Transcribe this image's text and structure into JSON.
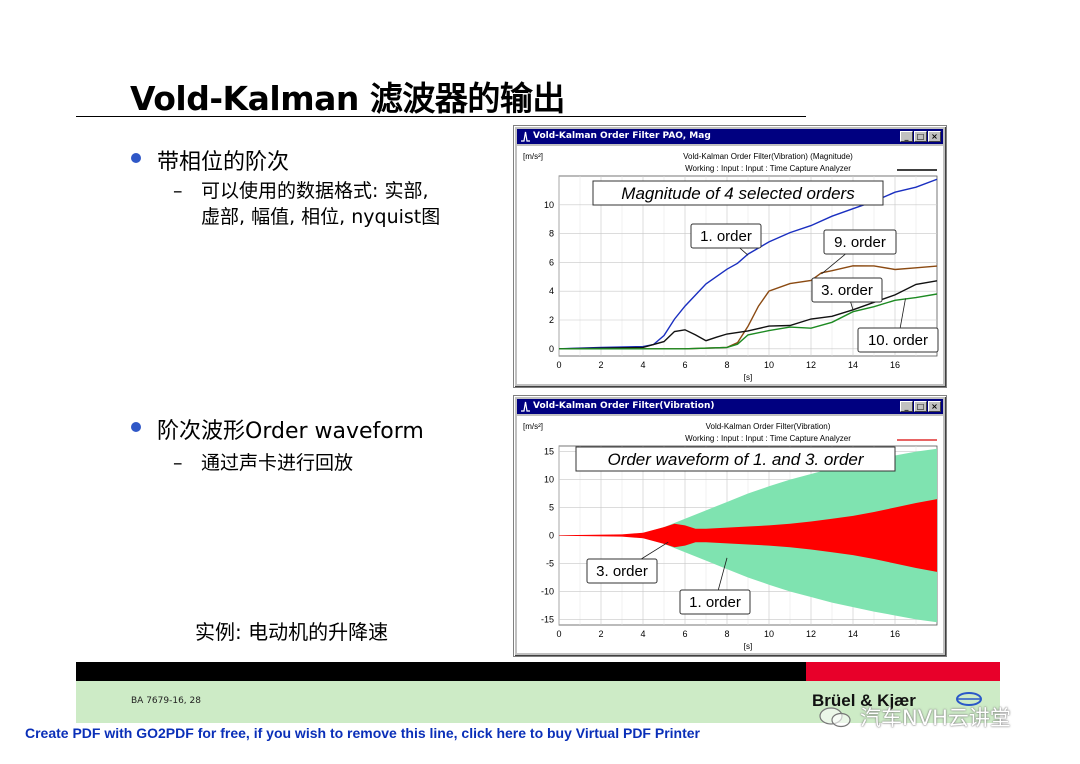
{
  "slide": {
    "title": "Vold-Kalman 滤波器的输出",
    "bullet1": "带相位的阶次",
    "bullet1_sub_line1": "可以使用的数据格式: 实部,",
    "bullet1_sub_line2": "虚部, 幅值, 相位, nyquist图",
    "bullet2": "阶次波形Order waveform",
    "bullet2_sub": "通过声卡进行回放",
    "example": "实例: 电动机的升降速",
    "dash": "–"
  },
  "footer": {
    "code": "BA 7679-16, 28",
    "logo": "Brüel & Kjær",
    "watermark": "汽车NVH云讲堂",
    "pdf_line": "Create PDF with GO2PDF for free, if you wish to remove this line, click here to buy Virtual PDF Printer"
  },
  "window_buttons": {
    "minimize": "_",
    "maximize": "□",
    "close": "×"
  },
  "chart_data": [
    {
      "type": "line",
      "window_title": "Vold-Kalman Order Filter PAO, Mag",
      "header_line1": "Vold-Kalman Order Filter(Vibration) (Magnitude)",
      "header_line2": "Working : Input : Input : Time Capture Analyzer",
      "unit": "[m/s²]",
      "xlabel": "[s]",
      "xlim": [
        0,
        18
      ],
      "ylim": [
        -0.5,
        12
      ],
      "xticks": [
        "0",
        "2",
        "4",
        "6",
        "8",
        "10",
        "12",
        "14",
        "16"
      ],
      "yticks": [
        "0",
        "2",
        "4",
        "6",
        "8",
        "10"
      ],
      "grid": true,
      "annotation_main": "Magnitude of 4 selected orders",
      "series": [
        {
          "name": "1. order",
          "color": "#1a2fc0",
          "x": [
            0,
            2,
            4,
            4.5,
            5,
            5.5,
            6,
            7,
            8,
            8.5,
            9,
            10,
            11,
            12,
            13,
            14,
            15,
            16,
            17,
            18
          ],
          "y": [
            0,
            0.1,
            0.15,
            0.3,
            1,
            2,
            3,
            4.5,
            5.5,
            6,
            6.5,
            7.5,
            8,
            8.6,
            9.2,
            9.7,
            10.3,
            10.8,
            11.3,
            11.7
          ]
        },
        {
          "name": "9. order",
          "color": "#8b4a12",
          "x": [
            0,
            4,
            6,
            8,
            8.5,
            9,
            9.5,
            10,
            11,
            12,
            12.5,
            13,
            14,
            15,
            16,
            17,
            18
          ],
          "y": [
            0,
            0,
            0,
            0.1,
            0.5,
            1.5,
            3,
            4,
            4.5,
            4.8,
            5.2,
            5.5,
            5.7,
            5.8,
            5.5,
            5.6,
            5.8
          ]
        },
        {
          "name": "3. order",
          "color": "#111111",
          "x": [
            0,
            4,
            5,
            5.5,
            6,
            6.5,
            7,
            7.5,
            8,
            9,
            10,
            11,
            12,
            13,
            14,
            15,
            16,
            17,
            18
          ],
          "y": [
            0,
            0.1,
            0.5,
            1.2,
            1.4,
            0.9,
            0.6,
            0.8,
            1,
            1.3,
            1.5,
            1.7,
            2,
            2.3,
            2.7,
            3.2,
            3.8,
            4.4,
            4.8
          ]
        },
        {
          "name": "10. order",
          "color": "#1d8a22",
          "x": [
            0,
            4,
            6,
            8,
            8.5,
            9,
            10,
            11,
            12,
            13,
            14,
            15,
            16,
            17,
            18
          ],
          "y": [
            0,
            0,
            0,
            0.1,
            0.4,
            0.9,
            1.3,
            1.5,
            1.4,
            1.9,
            2.5,
            3,
            3.3,
            3.6,
            3.8
          ]
        }
      ],
      "callouts": [
        {
          "text": "1. order",
          "series": "1. order",
          "x": 9,
          "y": 6.5
        },
        {
          "text": "9. order",
          "series": "9. order",
          "x": 12.5,
          "y": 5.2
        },
        {
          "text": "3. order",
          "series": "3. order",
          "x": 14,
          "y": 2.7
        },
        {
          "text": "10. order",
          "series": "10. order",
          "x": 16.5,
          "y": 3.5
        }
      ]
    },
    {
      "type": "area",
      "window_title": "Vold-Kalman Order Filter(Vibration)",
      "header_line1": "Vold-Kalman Order Filter(Vibration)",
      "header_line2": "Working : Input : Input : Time Capture Analyzer",
      "unit": "[m/s²]",
      "xlabel": "[s]",
      "xlim": [
        0,
        18
      ],
      "ylim": [
        -16,
        16
      ],
      "xticks": [
        "0",
        "2",
        "4",
        "6",
        "8",
        "10",
        "12",
        "14",
        "16"
      ],
      "yticks": [
        "15",
        "10",
        "5",
        "0",
        "-5",
        "-10",
        "-15"
      ],
      "grid": true,
      "annotation_main": "Order waveform of 1. and 3. order",
      "series": [
        {
          "name": "1. order",
          "color": "#7fe3b0",
          "x": [
            0,
            3,
            4,
            5,
            6,
            7,
            8,
            9,
            10,
            11,
            12,
            13,
            14,
            15,
            16,
            17,
            18
          ],
          "envelope": [
            0,
            0.1,
            0.4,
            1.5,
            3,
            4.5,
            6,
            7.5,
            8.8,
            10,
            11,
            12,
            12.8,
            13.6,
            14.3,
            15,
            15.5
          ]
        },
        {
          "name": "3. order",
          "color": "#ff0000",
          "x": [
            0,
            3,
            4,
            5,
            5.5,
            6,
            6.5,
            7,
            8,
            9,
            10,
            11,
            12,
            13,
            14,
            15,
            16,
            17,
            18
          ],
          "envelope": [
            0.05,
            0.2,
            0.5,
            1.5,
            2.1,
            1.8,
            1.2,
            1.2,
            1.4,
            1.6,
            1.8,
            2.1,
            2.5,
            3,
            3.5,
            4.2,
            5,
            5.8,
            6.5
          ]
        }
      ],
      "callouts": [
        {
          "text": "3. order",
          "series": "3. order",
          "x": 5.2,
          "y": -1.2
        },
        {
          "text": "1. order",
          "series": "1. order",
          "x": 8,
          "y": -4
        }
      ]
    }
  ]
}
